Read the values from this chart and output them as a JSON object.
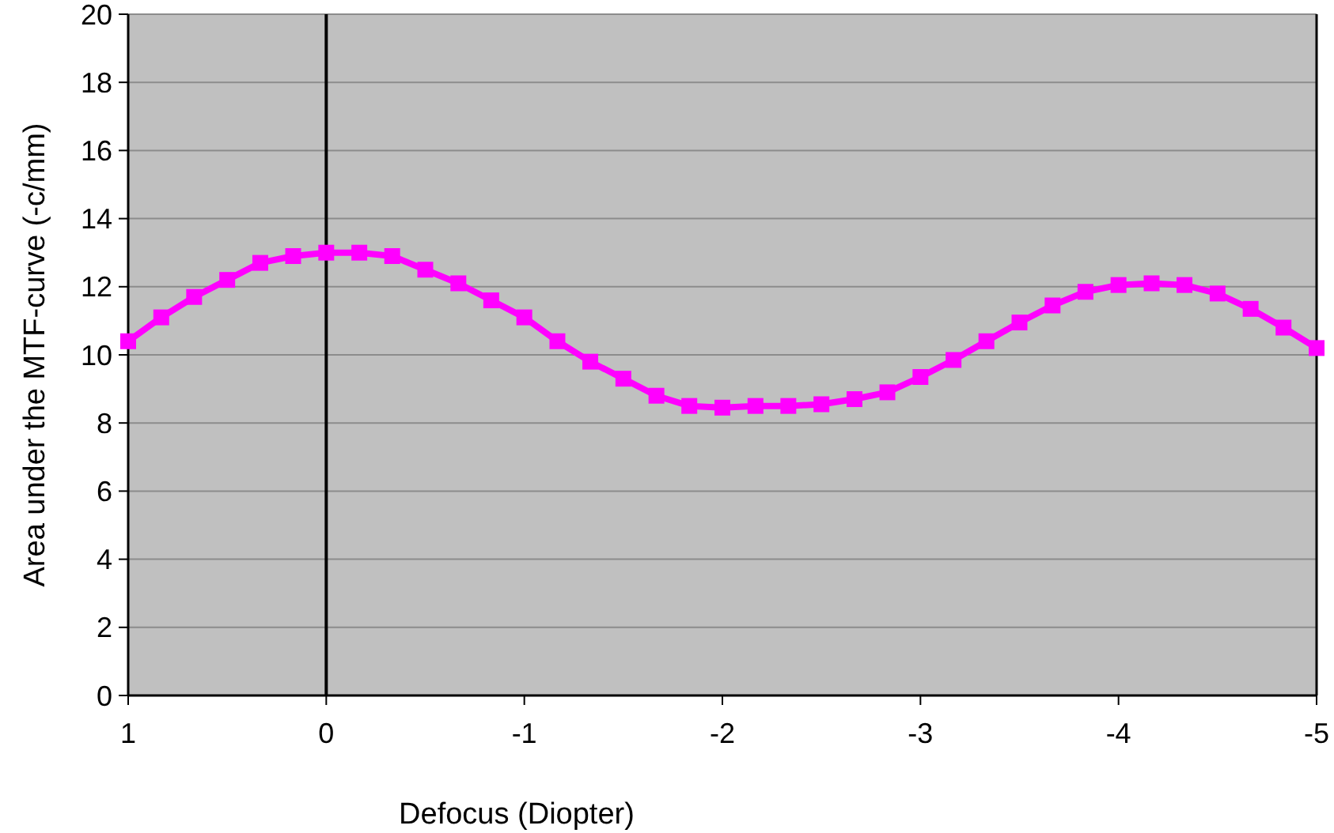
{
  "chart_data": {
    "type": "line",
    "xlabel": "Defocus (Diopter)",
    "ylabel": "Area under the MTF-curve (-c/mm)",
    "x": [
      1,
      0.833,
      0.667,
      0.5,
      0.333,
      0.167,
      0,
      -0.167,
      -0.333,
      -0.5,
      -0.667,
      -0.833,
      -1,
      -1.167,
      -1.333,
      -1.5,
      -1.667,
      -1.833,
      -2,
      -2.167,
      -2.333,
      -2.5,
      -2.667,
      -2.833,
      -3,
      -3.167,
      -3.333,
      -3.5,
      -3.667,
      -3.833,
      -4,
      -4.167,
      -4.333,
      -4.5,
      -4.667,
      -4.833,
      -5
    ],
    "series": [
      {
        "color": "#ff00ff",
        "values": [
          10.4,
          11.1,
          11.7,
          12.2,
          12.7,
          12.9,
          13.0,
          13.0,
          12.9,
          12.5,
          12.1,
          11.6,
          11.1,
          10.4,
          9.8,
          9.3,
          8.8,
          8.5,
          8.45,
          8.5,
          8.5,
          8.55,
          8.7,
          8.9,
          9.35,
          9.85,
          10.4,
          10.95,
          11.45,
          11.85,
          12.05,
          12.1,
          12.05,
          11.8,
          11.35,
          10.8,
          10.2
        ]
      }
    ],
    "xlim": [
      1,
      -5
    ],
    "xticks": [
      1,
      0,
      -1,
      -2,
      -3,
      -4,
      -5
    ],
    "ylim": [
      0,
      20
    ],
    "yticks": [
      0,
      2,
      4,
      6,
      8,
      10,
      12,
      14,
      16,
      18,
      20
    ],
    "grid": "y",
    "marker": "square",
    "line_style": "solid",
    "ref_lines": [
      {
        "axis": "x",
        "value": 0,
        "color": "#000000"
      }
    ]
  }
}
